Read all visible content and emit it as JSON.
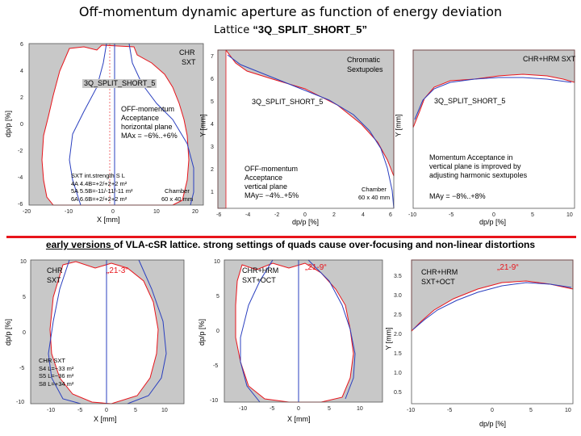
{
  "title": "Off-momentum dynamic aperture as function of  energy deviation",
  "subtitle_prefix": "Lattice ",
  "subtitle_lattice": "“3Q_SPLIT_SHORT_5”",
  "red_line_color": "#e8141b",
  "section_heading_underlined": "early versions ",
  "section_heading_rest": "of VLA-cSR lattice. strong settings of quads cause over-focusing and non-linear distortions",
  "panels": {
    "p1": {
      "label_chr": "CHR",
      "label_sxt": "SXT",
      "lattice": "3Q_SPLIT_SHORT_5",
      "acc_l1": "OFF-momentum",
      "acc_l2": "Acceptance",
      "acc_l3": "horizontal plane",
      "acc_l4": "MAx = −6%..+6%",
      "sxt_l1": "SXT int.strength  S L",
      "sxt_l2": "4A 4.4B=+2/+2+2 m²",
      "sxt_l3": "5A 5.5B=-11/-11/-11 m²",
      "sxt_l4": "6A 6.6B=+2/+2+2 m²",
      "chamber_l1": "Chamber",
      "chamber_l2": "60 x 40 mm",
      "xlabel": "X  [mm]",
      "ylabel": "dp/p  [%]",
      "xticks": [
        "-20",
        "-10",
        "0",
        "10",
        "20"
      ],
      "yticks": [
        "6",
        "4",
        "2",
        "0",
        "-2",
        "-4",
        "-6"
      ]
    },
    "p2": {
      "label_l1": "Chromatic",
      "label_l2": "Sextupoles",
      "lattice": "3Q_SPLIT_SHORT_5",
      "acc_l1": "OFF-momentum",
      "acc_l2": "Acceptance",
      "acc_l3": "vertical plane",
      "acc_l4": "MAy= −4%..+5%",
      "chamber_l1": "Chamber",
      "chamber_l2": "60 x 40 mm",
      "xlabel": "dp/p  [%]",
      "ylabel": "Y  [mm]",
      "xticks": [
        "-6",
        "-4",
        "-2",
        "0",
        "2",
        "4",
        "6"
      ],
      "yticks": [
        "7",
        "6",
        "5",
        "4",
        "3",
        "2",
        "1"
      ]
    },
    "p3": {
      "label": "CHR+HRM SXT",
      "lattice": "3Q_SPLIT_SHORT_5",
      "note_l1": "Momentum Acceptance in",
      "note_l2": "vertical plane is improved by",
      "note_l3": "adjusting harmonic sextupoles",
      "ma": "MAy = −8%..+8%",
      "xlabel": "dp/p  [%]",
      "ylabel": "Y  [mm]",
      "xticks": [
        "-10",
        "-5",
        "0",
        "5",
        "10"
      ]
    },
    "p4": {
      "label_chr": "CHR",
      "label_sxt": "SXT",
      "case": "„21-3“",
      "sxt_l1": "CHR SXT",
      "sxt_l2": "S4 L=−33 m²",
      "sxt_l3": "S5 L=−36 m²",
      "sxt_l4": "S8 L=+34 m²",
      "xlabel": "X  [mm]",
      "ylabel": "dp/p  [%]",
      "xticks": [
        "-10",
        "-5",
        "0",
        "5",
        "10"
      ],
      "yticks": [
        "10",
        "5",
        "0",
        "-5",
        "-10"
      ]
    },
    "p5": {
      "label_l1": "CHR+HRM",
      "label_l2": "SXT+OCT",
      "case": "„21-9“",
      "xlabel": "X  [mm]",
      "ylabel": "dp/p  [%]",
      "xticks": [
        "-10",
        "-5",
        "0",
        "5",
        "10"
      ],
      "yticks": [
        "10",
        "5",
        "0",
        "-5",
        "-10"
      ]
    },
    "p6": {
      "label_l1": "CHR+HRM",
      "label_l2": "SXT+OCT",
      "case": "„21-9“",
      "xlabel": "dp/p  [%]",
      "ylabel": "Y  [mm]",
      "xticks": [
        "-10",
        "-5",
        "0",
        "5",
        "10"
      ],
      "yticks": [
        "3.5",
        "3.0",
        "2.5",
        "2.0",
        "1.5",
        "1.0",
        "0.5"
      ]
    }
  }
}
